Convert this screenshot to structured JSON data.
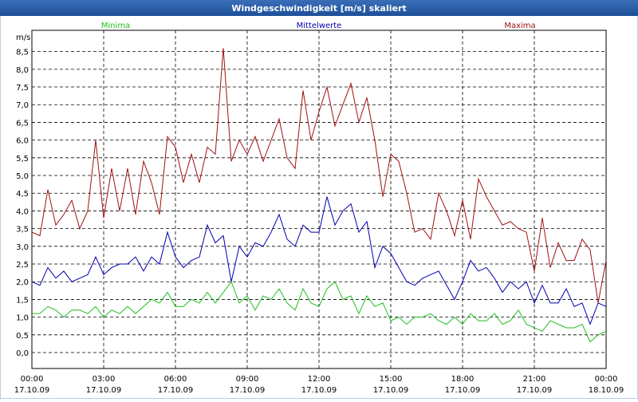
{
  "chart_data": {
    "type": "line",
    "title": "Windgeschwindigkeit [m/s] skaliert",
    "y_label": "m/s",
    "x": [
      0,
      20,
      40,
      60,
      80,
      100,
      120,
      140,
      160,
      180,
      200,
      220,
      240,
      260,
      280,
      300,
      320,
      340,
      360,
      380,
      400,
      420,
      440,
      460,
      480,
      500,
      520,
      540,
      560,
      580,
      600,
      620,
      640,
      660,
      680,
      700,
      720,
      740,
      760,
      780,
      800,
      820,
      840,
      860,
      880,
      900,
      920,
      940,
      960,
      980,
      1000,
      1020,
      1040,
      1060,
      1080,
      1100,
      1120,
      1140,
      1160,
      1180,
      1200,
      1220,
      1240,
      1260,
      1280,
      1300,
      1320,
      1340,
      1360,
      1380,
      1400,
      1420,
      1440
    ],
    "series": [
      {
        "name": "Minima",
        "color": "#1fbf1f",
        "values": [
          1.1,
          1.1,
          1.3,
          1.2,
          1.0,
          1.2,
          1.2,
          1.1,
          1.3,
          1.0,
          1.2,
          1.1,
          1.3,
          1.1,
          1.3,
          1.5,
          1.4,
          1.7,
          1.3,
          1.3,
          1.5,
          1.4,
          1.7,
          1.4,
          1.7,
          2.0,
          1.4,
          1.6,
          1.2,
          1.6,
          1.5,
          1.8,
          1.4,
          1.2,
          1.8,
          1.4,
          1.3,
          1.8,
          2.0,
          1.5,
          1.6,
          1.1,
          1.6,
          1.3,
          1.4,
          0.9,
          1.0,
          0.8,
          1.0,
          1.0,
          1.1,
          0.9,
          0.8,
          1.0,
          0.8,
          1.1,
          0.9,
          0.9,
          1.1,
          0.8,
          0.9,
          1.2,
          0.8,
          0.7,
          0.6,
          0.9,
          0.8,
          0.7,
          0.7,
          0.8,
          0.3,
          0.5,
          0.6
        ]
      },
      {
        "name": "Mittelwerte",
        "color": "#0000b0",
        "values": [
          2.0,
          1.9,
          2.4,
          2.1,
          2.3,
          2.0,
          2.1,
          2.2,
          2.7,
          2.2,
          2.4,
          2.5,
          2.5,
          2.7,
          2.3,
          2.7,
          2.5,
          3.4,
          2.7,
          2.4,
          2.6,
          2.7,
          3.6,
          3.1,
          3.3,
          2.0,
          3.0,
          2.7,
          3.1,
          3.0,
          3.4,
          3.9,
          3.2,
          3.0,
          3.6,
          3.4,
          3.4,
          4.4,
          3.6,
          4.0,
          4.2,
          3.4,
          3.7,
          2.4,
          3.0,
          2.8,
          2.4,
          2.0,
          1.9,
          2.1,
          2.2,
          2.3,
          1.9,
          1.5,
          2.0,
          2.6,
          2.3,
          2.4,
          2.1,
          1.7,
          2.0,
          1.8,
          2.0,
          1.4,
          1.9,
          1.4,
          1.4,
          1.8,
          1.3,
          1.4,
          0.8,
          1.4,
          1.3
        ]
      },
      {
        "name": "Maxima",
        "color": "#a01010",
        "values": [
          3.4,
          3.3,
          4.6,
          3.6,
          3.9,
          4.3,
          3.5,
          4.0,
          6.0,
          3.8,
          5.2,
          4.0,
          5.2,
          3.9,
          5.4,
          4.8,
          3.9,
          6.1,
          5.8,
          4.8,
          5.6,
          4.8,
          5.8,
          5.6,
          8.6,
          5.4,
          6.0,
          5.6,
          6.1,
          5.4,
          6.0,
          6.6,
          5.5,
          5.2,
          7.4,
          6.0,
          6.8,
          7.5,
          6.4,
          7.0,
          7.6,
          6.5,
          7.2,
          6.0,
          4.4,
          5.6,
          5.4,
          4.5,
          3.4,
          3.5,
          3.2,
          4.5,
          4.0,
          3.3,
          4.3,
          3.2,
          4.9,
          4.4,
          4.0,
          3.6,
          3.7,
          3.5,
          3.4,
          2.3,
          3.8,
          2.4,
          3.1,
          2.6,
          2.6,
          3.2,
          2.9,
          1.4,
          2.6
        ]
      }
    ],
    "xlim": [
      0,
      1440
    ],
    "xticks": [
      {
        "value": 0,
        "label": "00:00 17.10.09"
      },
      {
        "value": 180,
        "label": "03:00 17.10.09"
      },
      {
        "value": 360,
        "label": "06:00 17.10.09"
      },
      {
        "value": 540,
        "label": "09:00 17.10.09"
      },
      {
        "value": 720,
        "label": "12:00 17.10.09"
      },
      {
        "value": 900,
        "label": "15:00 17.10.09"
      },
      {
        "value": 1080,
        "label": "18:00 17.10.09"
      },
      {
        "value": 1260,
        "label": "21:00 17.10.09"
      },
      {
        "value": 1440,
        "label": "00:00 18.10.09"
      }
    ],
    "ylim": [
      -0.45,
      9.1
    ],
    "yticks": [
      {
        "value": 0,
        "label": "0,0"
      },
      {
        "value": 0.5,
        "label": "0,5"
      },
      {
        "value": 1,
        "label": "1,0"
      },
      {
        "value": 1.5,
        "label": "1,5"
      },
      {
        "value": 2,
        "label": "2,0"
      },
      {
        "value": 2.5,
        "label": "2,5"
      },
      {
        "value": 3,
        "label": "3,0"
      },
      {
        "value": 3.5,
        "label": "3,5"
      },
      {
        "value": 4,
        "label": "4,0"
      },
      {
        "value": 4.5,
        "label": "4,5"
      },
      {
        "value": 5,
        "label": "5,0"
      },
      {
        "value": 5.5,
        "label": "5,5"
      },
      {
        "value": 6,
        "label": "6,0"
      },
      {
        "value": 6.5,
        "label": "6,5"
      },
      {
        "value": 7,
        "label": "7,0"
      },
      {
        "value": 7.5,
        "label": "7,5"
      },
      {
        "value": 8,
        "label": "8,0"
      },
      {
        "value": 8.5,
        "label": "8,5"
      }
    ],
    "grid": true
  }
}
